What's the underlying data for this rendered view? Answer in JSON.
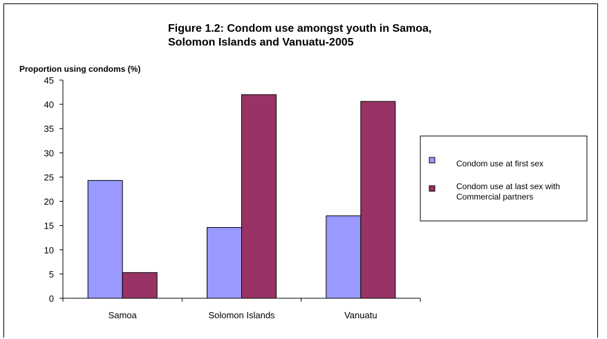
{
  "chart_data": {
    "type": "bar",
    "title": [
      "Figure 1.2: Condom use amongst youth in Samoa,",
      "Solomon Islands and Vanuatu-2005"
    ],
    "ylabel": "Proportion using condoms (%)",
    "xlabel": "",
    "ylim": [
      0,
      45
    ],
    "yticks": [
      0,
      5,
      10,
      15,
      20,
      25,
      30,
      35,
      40,
      45
    ],
    "categories": [
      "Samoa",
      "Solomon Islands",
      "Vanuatu"
    ],
    "series": [
      {
        "name": "Condom use at first sex",
        "color": "#9999ff",
        "values": [
          24.3,
          14.6,
          17.0
        ]
      },
      {
        "name": "Condom use at last sex with Commercial partners",
        "color": "#993366",
        "values": [
          5.3,
          42.0,
          40.6
        ]
      }
    ],
    "legend_position": "right",
    "grid": false
  }
}
